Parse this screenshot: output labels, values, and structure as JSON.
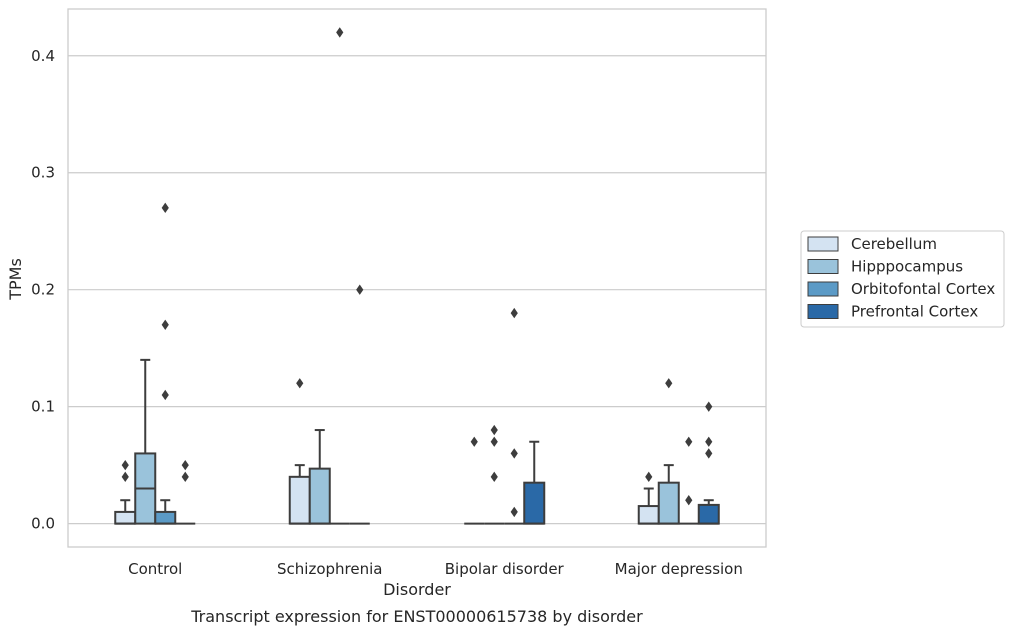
{
  "caption": "Transcript expression for ENST00000615738 by disorder",
  "chart_data": {
    "type": "box",
    "xlabel": "Disorder",
    "ylabel": "TPMs",
    "ylim": [
      -0.02,
      0.44
    ],
    "yticks": [
      0.0,
      0.1,
      0.2,
      0.3,
      0.4
    ],
    "ytick_labels": [
      "0.0",
      "0.1",
      "0.2",
      "0.3",
      "0.4"
    ],
    "grid": "horizontal",
    "legend_position": "right",
    "categories": [
      "Control",
      "Schizophrenia",
      "Bipolar disorder",
      "Major depression"
    ],
    "series": [
      {
        "name": "Cerebellum",
        "color": "#d4e3f2",
        "boxes": [
          {
            "q1": 0.0,
            "median": 0.0,
            "q3": 0.01,
            "whisker_low": 0.0,
            "whisker_high": 0.02,
            "outliers": [
              0.04,
              0.05
            ]
          },
          {
            "q1": 0.0,
            "median": 0.0,
            "q3": 0.04,
            "whisker_low": 0.0,
            "whisker_high": 0.05,
            "outliers": [
              0.12
            ]
          },
          {
            "q1": 0.0,
            "median": 0.0,
            "q3": 0.0,
            "whisker_low": 0.0,
            "whisker_high": 0.0,
            "outliers": [
              0.07
            ]
          },
          {
            "q1": 0.0,
            "median": 0.0,
            "q3": 0.015,
            "whisker_low": 0.0,
            "whisker_high": 0.03,
            "outliers": [
              0.04
            ]
          }
        ]
      },
      {
        "name": "Hipppocampus",
        "color": "#9ac3db",
        "boxes": [
          {
            "q1": 0.0,
            "median": 0.03,
            "q3": 0.06,
            "whisker_low": 0.0,
            "whisker_high": 0.14,
            "outliers": []
          },
          {
            "q1": 0.0,
            "median": 0.0,
            "q3": 0.047,
            "whisker_low": 0.0,
            "whisker_high": 0.08,
            "outliers": []
          },
          {
            "q1": 0.0,
            "median": 0.0,
            "q3": 0.0,
            "whisker_low": 0.0,
            "whisker_high": 0.0,
            "outliers": [
              0.04,
              0.07,
              0.08
            ]
          },
          {
            "q1": 0.0,
            "median": 0.0,
            "q3": 0.035,
            "whisker_low": 0.0,
            "whisker_high": 0.05,
            "outliers": [
              0.12
            ]
          }
        ]
      },
      {
        "name": "Orbitofontal Cortex",
        "color": "#5b9ac6",
        "boxes": [
          {
            "q1": 0.0,
            "median": 0.0,
            "q3": 0.01,
            "whisker_low": 0.0,
            "whisker_high": 0.02,
            "outliers": [
              0.11,
              0.17,
              0.27
            ]
          },
          {
            "q1": 0.0,
            "median": 0.0,
            "q3": 0.0,
            "whisker_low": 0.0,
            "whisker_high": 0.0,
            "outliers": [
              0.42
            ]
          },
          {
            "q1": 0.0,
            "median": 0.0,
            "q3": 0.0,
            "whisker_low": 0.0,
            "whisker_high": 0.0,
            "outliers": [
              0.01,
              0.06,
              0.18
            ]
          },
          {
            "q1": 0.0,
            "median": 0.0,
            "q3": 0.0,
            "whisker_low": 0.0,
            "whisker_high": 0.0,
            "outliers": [
              0.02,
              0.07
            ]
          }
        ]
      },
      {
        "name": "Prefrontal Cortex",
        "color": "#2a69a7",
        "boxes": [
          {
            "q1": 0.0,
            "median": 0.0,
            "q3": 0.0,
            "whisker_low": 0.0,
            "whisker_high": 0.0,
            "outliers": [
              0.04,
              0.05
            ]
          },
          {
            "q1": 0.0,
            "median": 0.0,
            "q3": 0.0,
            "whisker_low": 0.0,
            "whisker_high": 0.0,
            "outliers": [
              0.2
            ]
          },
          {
            "q1": 0.0,
            "median": 0.0,
            "q3": 0.035,
            "whisker_low": 0.0,
            "whisker_high": 0.07,
            "outliers": []
          },
          {
            "q1": 0.0,
            "median": 0.0,
            "q3": 0.016,
            "whisker_low": 0.0,
            "whisker_high": 0.02,
            "outliers": [
              0.06,
              0.07,
              0.1
            ]
          }
        ]
      }
    ]
  }
}
